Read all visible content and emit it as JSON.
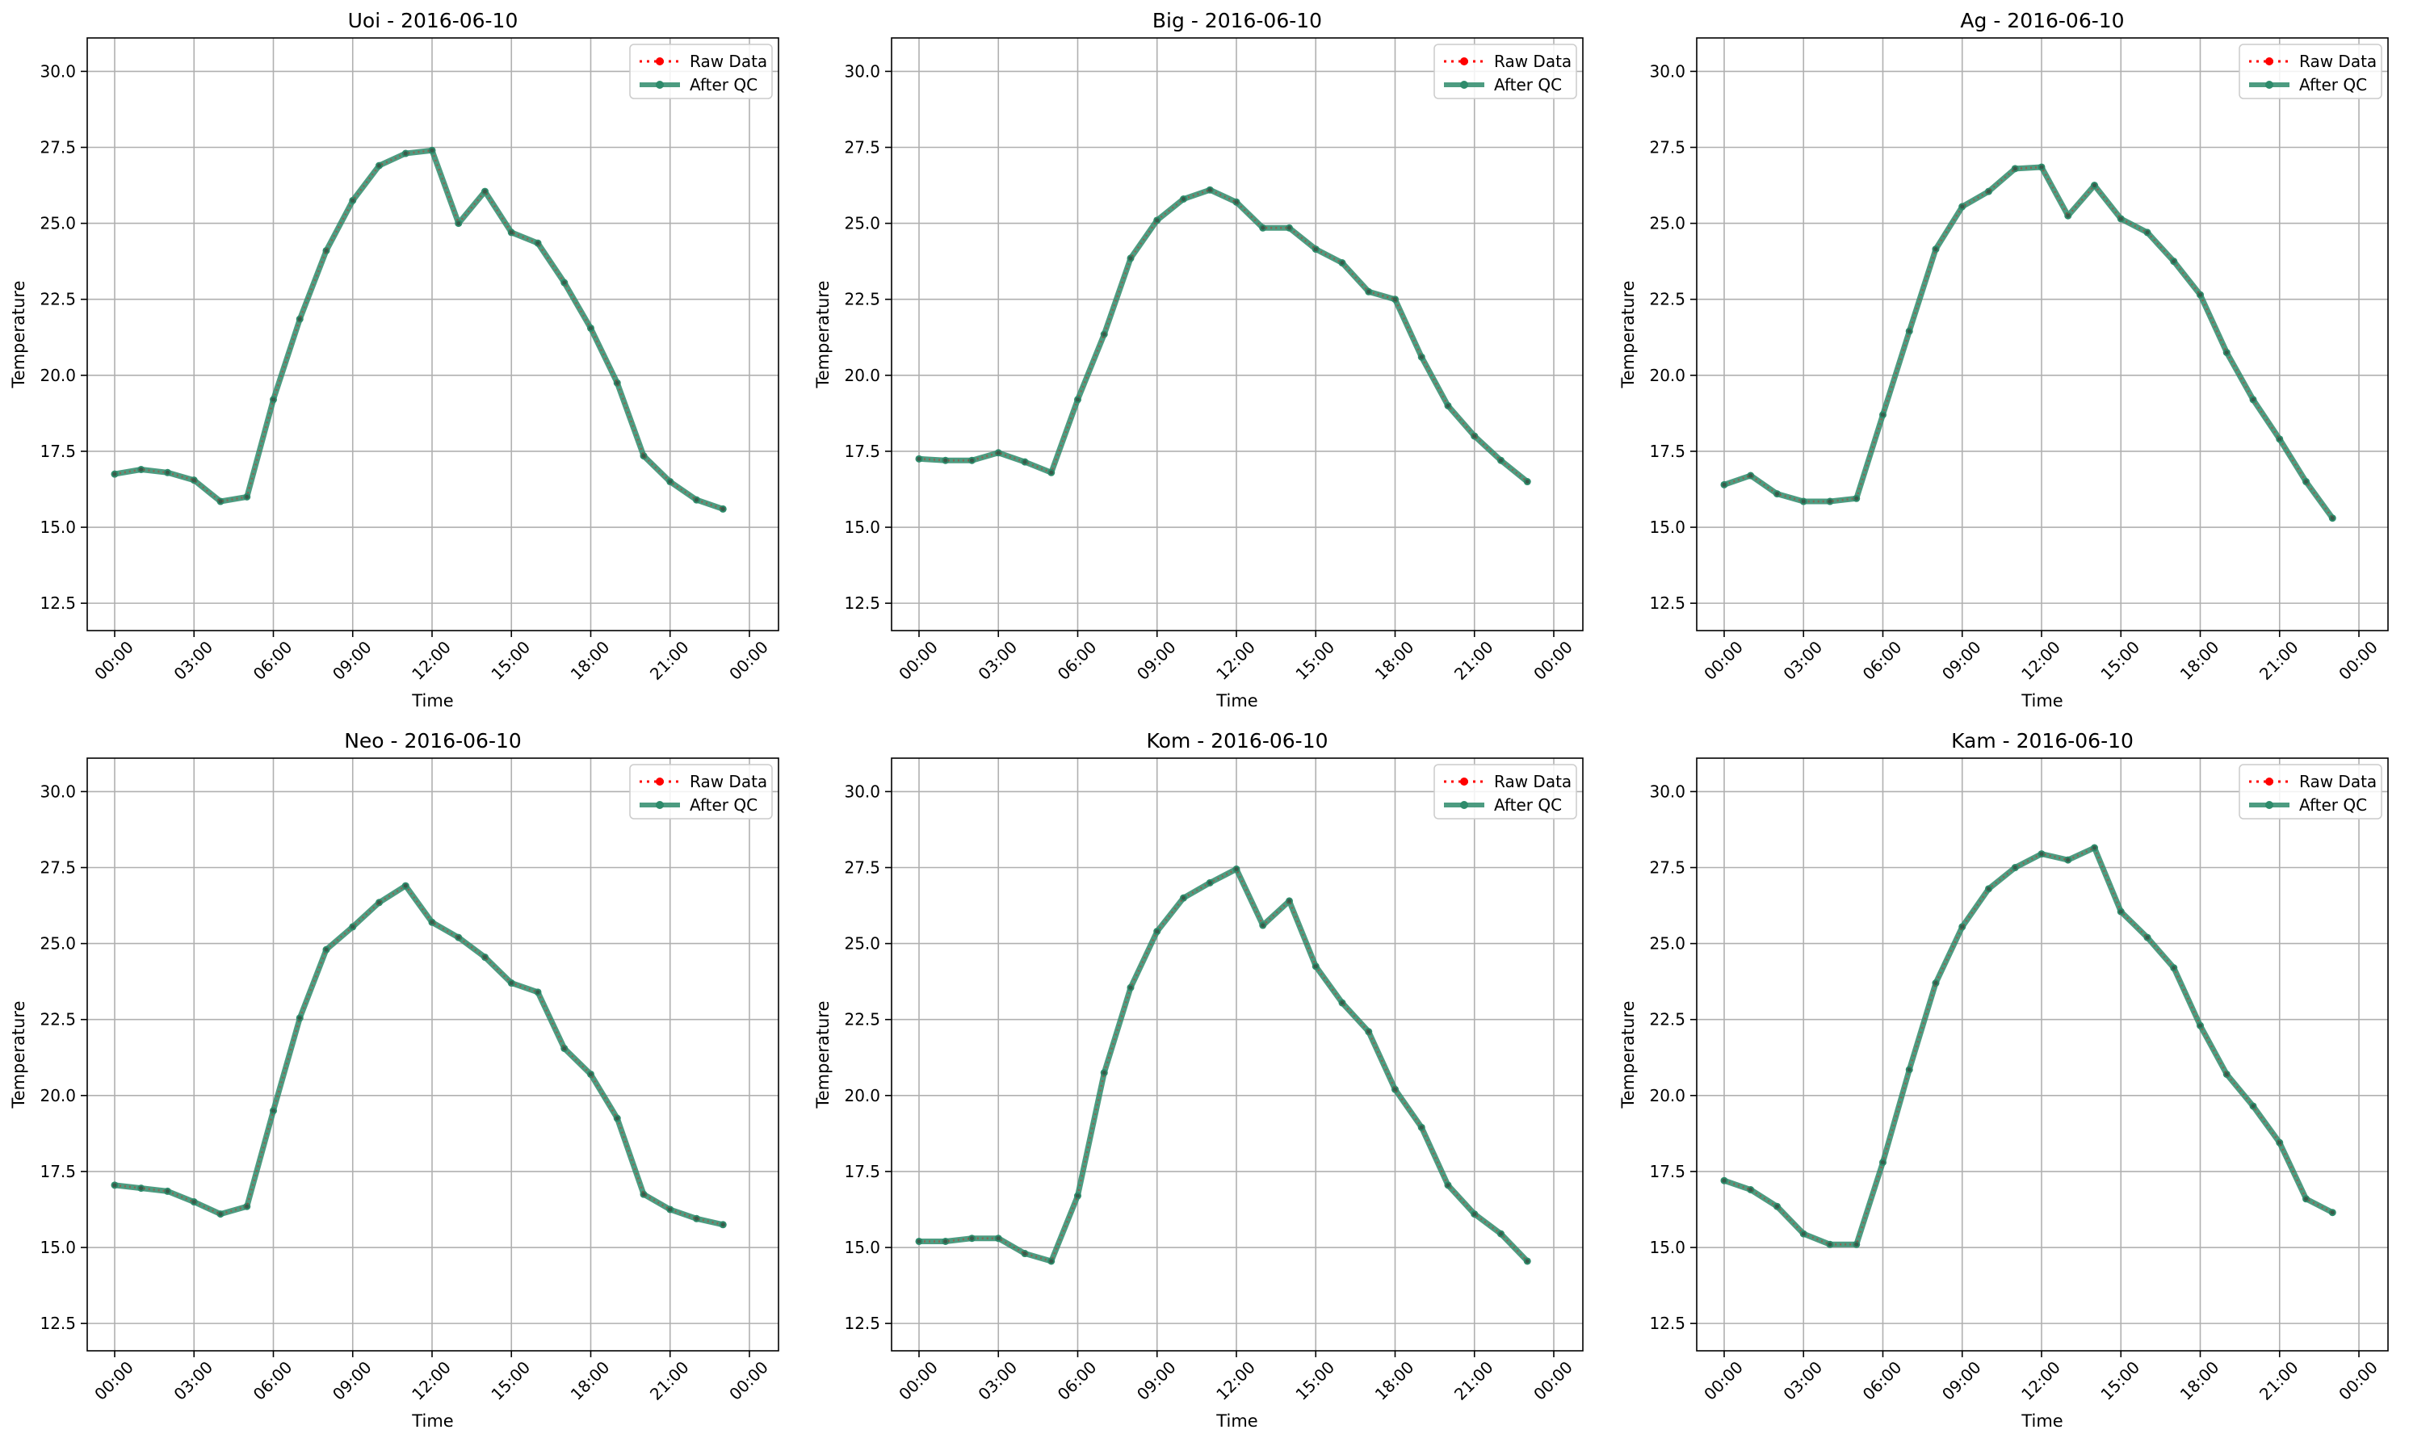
{
  "colors": {
    "raw": "#ff0000",
    "qc": "#2e8b6b",
    "grid": "#b0b0b0",
    "axis": "#000000"
  },
  "legend_labels": {
    "raw": "Raw Data",
    "qc": "After QC"
  },
  "chart_data": [
    {
      "type": "line",
      "title": "Uoi - 2016-06-10",
      "xlabel": "Time",
      "ylabel": "Temperature",
      "x_hours": [
        0,
        1,
        2,
        3,
        4,
        5,
        6,
        7,
        8,
        9,
        10,
        11,
        12,
        13,
        14,
        15,
        16,
        17,
        18,
        19,
        20,
        21,
        22,
        23
      ],
      "xticks": [
        "00:00",
        "03:00",
        "06:00",
        "09:00",
        "12:00",
        "15:00",
        "18:00",
        "21:00",
        "00:00"
      ],
      "yticks": [
        "12.5",
        "15.0",
        "17.5",
        "20.0",
        "22.5",
        "25.0",
        "27.5",
        "30.0"
      ],
      "ylim": [
        11.6,
        31.1
      ],
      "grid": true,
      "legend": "top-right",
      "series": [
        {
          "name": "Raw Data",
          "values": [
            16.75,
            16.9,
            16.8,
            16.55,
            15.85,
            16.0,
            19.2,
            21.85,
            24.1,
            25.75,
            26.9,
            27.3,
            27.4,
            25.0,
            26.05,
            24.7,
            24.35,
            23.05,
            21.55,
            19.75,
            17.35,
            16.5,
            15.9,
            15.6
          ]
        },
        {
          "name": "After QC",
          "values": [
            16.75,
            16.9,
            16.8,
            16.55,
            15.85,
            16.0,
            19.2,
            21.85,
            24.1,
            25.75,
            26.9,
            27.3,
            27.4,
            25.0,
            26.05,
            24.7,
            24.35,
            23.05,
            21.55,
            19.75,
            17.35,
            16.5,
            15.9,
            15.6
          ]
        }
      ]
    },
    {
      "type": "line",
      "title": "Big - 2016-06-10",
      "xlabel": "Time",
      "ylabel": "Temperature",
      "x_hours": [
        0,
        1,
        2,
        3,
        4,
        5,
        6,
        7,
        8,
        9,
        10,
        11,
        12,
        13,
        14,
        15,
        16,
        17,
        18,
        19,
        20,
        21,
        22,
        23
      ],
      "xticks": [
        "00:00",
        "03:00",
        "06:00",
        "09:00",
        "12:00",
        "15:00",
        "18:00",
        "21:00",
        "00:00"
      ],
      "yticks": [
        "12.5",
        "15.0",
        "17.5",
        "20.0",
        "22.5",
        "25.0",
        "27.5",
        "30.0"
      ],
      "ylim": [
        11.6,
        31.1
      ],
      "grid": true,
      "legend": "top-right",
      "series": [
        {
          "name": "Raw Data",
          "values": [
            17.25,
            17.2,
            17.2,
            17.45,
            17.15,
            16.8,
            19.2,
            21.35,
            23.85,
            25.1,
            25.8,
            26.1,
            25.7,
            24.85,
            24.85,
            24.15,
            23.7,
            22.75,
            22.5,
            20.6,
            19.0,
            18.0,
            17.2,
            16.5
          ]
        },
        {
          "name": "After QC",
          "values": [
            17.25,
            17.2,
            17.2,
            17.45,
            17.15,
            16.8,
            19.2,
            21.35,
            23.85,
            25.1,
            25.8,
            26.1,
            25.7,
            24.85,
            24.85,
            24.15,
            23.7,
            22.75,
            22.5,
            20.6,
            19.0,
            18.0,
            17.2,
            16.5
          ]
        }
      ]
    },
    {
      "type": "line",
      "title": "Ag - 2016-06-10",
      "xlabel": "Time",
      "ylabel": "Temperature",
      "x_hours": [
        0,
        1,
        2,
        3,
        4,
        5,
        6,
        7,
        8,
        9,
        10,
        11,
        12,
        13,
        14,
        15,
        16,
        17,
        18,
        19,
        20,
        21,
        22,
        23
      ],
      "xticks": [
        "00:00",
        "03:00",
        "06:00",
        "09:00",
        "12:00",
        "15:00",
        "18:00",
        "21:00",
        "00:00"
      ],
      "yticks": [
        "12.5",
        "15.0",
        "17.5",
        "20.0",
        "22.5",
        "25.0",
        "27.5",
        "30.0"
      ],
      "ylim": [
        11.6,
        31.1
      ],
      "grid": true,
      "legend": "top-right",
      "series": [
        {
          "name": "Raw Data",
          "values": [
            16.4,
            16.7,
            16.1,
            15.85,
            15.85,
            15.95,
            18.7,
            21.45,
            24.15,
            25.55,
            26.05,
            26.8,
            26.85,
            25.25,
            26.25,
            25.15,
            24.7,
            23.75,
            22.65,
            20.75,
            19.2,
            17.9,
            16.5,
            15.3
          ]
        },
        {
          "name": "After QC",
          "values": [
            16.4,
            16.7,
            16.1,
            15.85,
            15.85,
            15.95,
            18.7,
            21.45,
            24.15,
            25.55,
            26.05,
            26.8,
            26.85,
            25.25,
            26.25,
            25.15,
            24.7,
            23.75,
            22.65,
            20.75,
            19.2,
            17.9,
            16.5,
            15.3
          ]
        }
      ]
    },
    {
      "type": "line",
      "title": "Neo - 2016-06-10",
      "xlabel": "Time",
      "ylabel": "Temperature",
      "x_hours": [
        0,
        1,
        2,
        3,
        4,
        5,
        6,
        7,
        8,
        9,
        10,
        11,
        12,
        13,
        14,
        15,
        16,
        17,
        18,
        19,
        20,
        21,
        22,
        23
      ],
      "xticks": [
        "00:00",
        "03:00",
        "06:00",
        "09:00",
        "12:00",
        "15:00",
        "18:00",
        "21:00",
        "00:00"
      ],
      "yticks": [
        "12.5",
        "15.0",
        "17.5",
        "20.0",
        "22.5",
        "25.0",
        "27.5",
        "30.0"
      ],
      "ylim": [
        11.6,
        31.1
      ],
      "grid": true,
      "legend": "top-right",
      "series": [
        {
          "name": "Raw Data",
          "values": [
            17.05,
            16.95,
            16.85,
            16.5,
            16.1,
            16.35,
            19.5,
            22.55,
            24.8,
            25.55,
            26.35,
            26.9,
            25.7,
            25.2,
            24.55,
            23.7,
            23.4,
            21.55,
            20.7,
            19.25,
            16.75,
            16.25,
            15.95,
            15.75
          ]
        },
        {
          "name": "After QC",
          "values": [
            17.05,
            16.95,
            16.85,
            16.5,
            16.1,
            16.35,
            19.5,
            22.55,
            24.8,
            25.55,
            26.35,
            26.9,
            25.7,
            25.2,
            24.55,
            23.7,
            23.4,
            21.55,
            20.7,
            19.25,
            16.75,
            16.25,
            15.95,
            15.75
          ]
        }
      ]
    },
    {
      "type": "line",
      "title": "Kom - 2016-06-10",
      "xlabel": "Time",
      "ylabel": "Temperature",
      "x_hours": [
        0,
        1,
        2,
        3,
        4,
        5,
        6,
        7,
        8,
        9,
        10,
        11,
        12,
        13,
        14,
        15,
        16,
        17,
        18,
        19,
        20,
        21,
        22,
        23
      ],
      "xticks": [
        "00:00",
        "03:00",
        "06:00",
        "09:00",
        "12:00",
        "15:00",
        "18:00",
        "21:00",
        "00:00"
      ],
      "yticks": [
        "12.5",
        "15.0",
        "17.5",
        "20.0",
        "22.5",
        "25.0",
        "27.5",
        "30.0"
      ],
      "ylim": [
        11.6,
        31.1
      ],
      "grid": true,
      "legend": "top-right",
      "series": [
        {
          "name": "Raw Data",
          "values": [
            15.2,
            15.2,
            15.3,
            15.3,
            14.8,
            14.55,
            16.7,
            20.75,
            23.55,
            25.4,
            26.5,
            27.0,
            27.45,
            25.6,
            26.4,
            24.25,
            23.05,
            22.1,
            20.2,
            18.95,
            17.05,
            16.1,
            15.45,
            14.55
          ]
        },
        {
          "name": "After QC",
          "values": [
            15.2,
            15.2,
            15.3,
            15.3,
            14.8,
            14.55,
            16.7,
            20.75,
            23.55,
            25.4,
            26.5,
            27.0,
            27.45,
            25.6,
            26.4,
            24.25,
            23.05,
            22.1,
            20.2,
            18.95,
            17.05,
            16.1,
            15.45,
            14.55
          ]
        }
      ]
    },
    {
      "type": "line",
      "title": "Kam - 2016-06-10",
      "xlabel": "Time",
      "ylabel": "Temperature",
      "x_hours": [
        0,
        1,
        2,
        3,
        4,
        5,
        6,
        7,
        8,
        9,
        10,
        11,
        12,
        13,
        14,
        15,
        16,
        17,
        18,
        19,
        20,
        21,
        22,
        23
      ],
      "xticks": [
        "00:00",
        "03:00",
        "06:00",
        "09:00",
        "12:00",
        "15:00",
        "18:00",
        "21:00",
        "00:00"
      ],
      "yticks": [
        "12.5",
        "15.0",
        "17.5",
        "20.0",
        "22.5",
        "25.0",
        "27.5",
        "30.0"
      ],
      "ylim": [
        11.6,
        31.1
      ],
      "grid": true,
      "legend": "top-right",
      "series": [
        {
          "name": "Raw Data",
          "values": [
            17.2,
            16.9,
            16.35,
            15.45,
            15.1,
            15.1,
            17.8,
            20.85,
            23.7,
            25.55,
            26.8,
            27.5,
            27.95,
            27.75,
            28.15,
            26.05,
            25.2,
            24.2,
            22.3,
            20.7,
            19.65,
            18.45,
            16.6,
            16.15
          ]
        },
        {
          "name": "After QC",
          "values": [
            17.2,
            16.9,
            16.35,
            15.45,
            15.1,
            15.1,
            17.8,
            20.85,
            23.7,
            25.55,
            26.8,
            27.5,
            27.95,
            27.75,
            28.15,
            26.05,
            25.2,
            24.2,
            22.3,
            20.7,
            19.65,
            18.45,
            16.6,
            16.15
          ]
        }
      ]
    }
  ]
}
